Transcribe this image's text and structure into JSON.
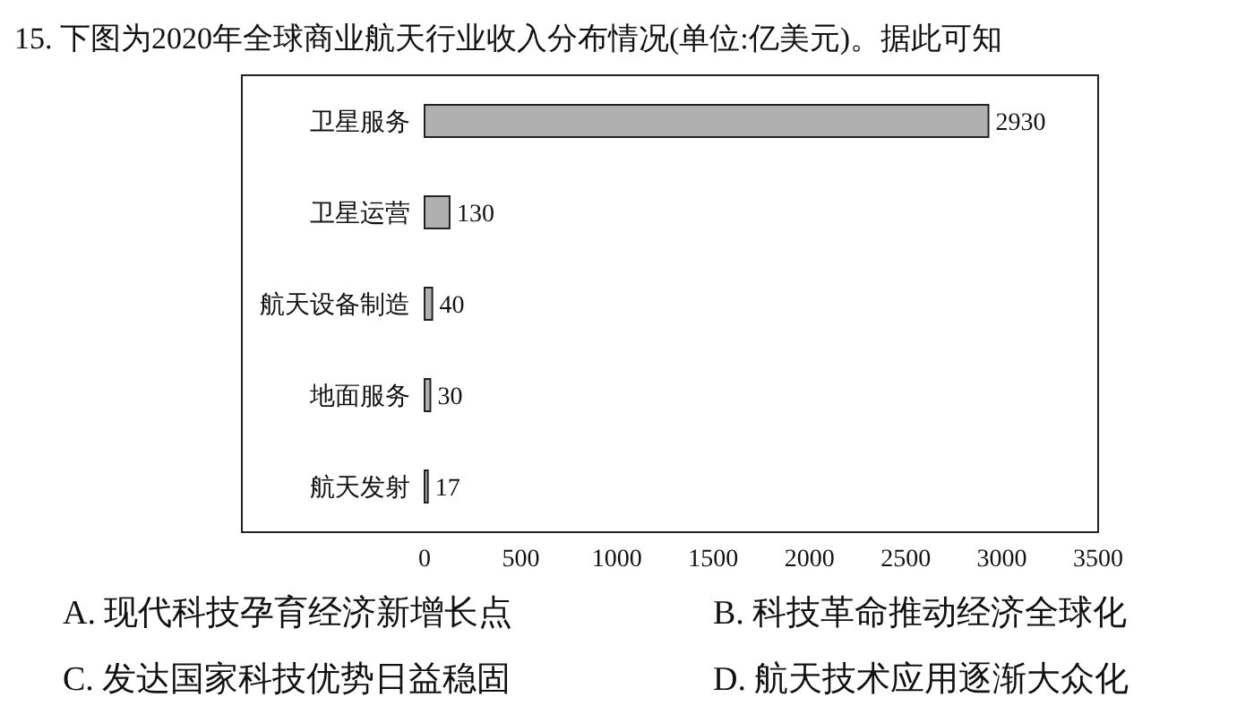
{
  "chart_data": {
    "type": "bar",
    "orientation": "horizontal",
    "title": "15. 下图为2020年全球商业航天行业收入分布情况(单位:亿美元)。据此可知",
    "categories": [
      "卫星服务",
      "卫星运营",
      "航天设备制造",
      "地面服务",
      "航天发射"
    ],
    "values": [
      2930,
      130,
      40,
      30,
      17
    ],
    "color": "#b0b0b0",
    "xlim": [
      0,
      3500
    ],
    "xticks": [
      0,
      500,
      1000,
      1500,
      2000,
      2500,
      3000,
      3500
    ],
    "data_labels": true,
    "annotations": [
      "A. 现代科技孕育经济新增长点",
      "B. 科技革命推动经济全球化",
      "C. 发达国家科技优势日益稳固",
      "D. 航天技术应用逐渐大众化"
    ]
  }
}
